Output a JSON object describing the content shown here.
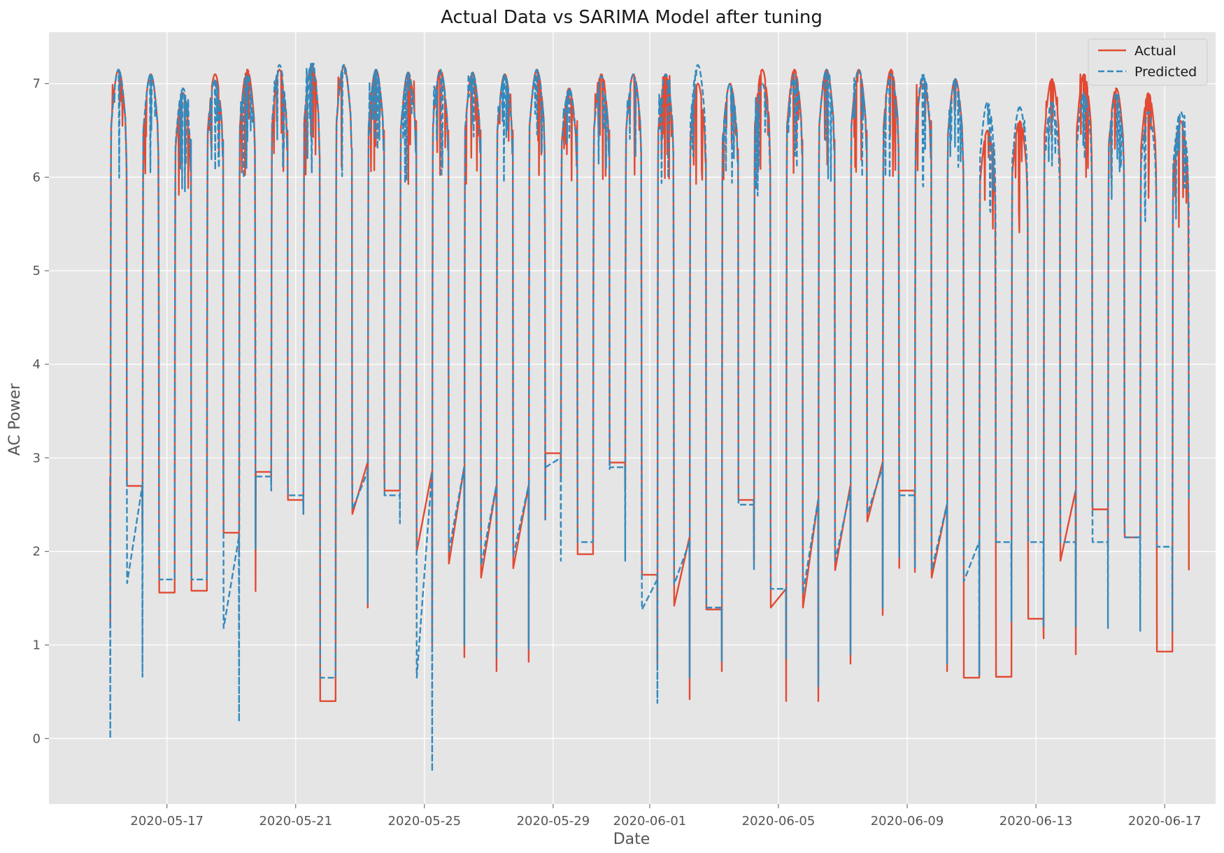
{
  "chart_data": {
    "type": "line",
    "title": "Actual Data vs SARIMA Model after tuning",
    "xlabel": "Date",
    "ylabel": "AC Power",
    "x_range": [
      "2020-05-13T08:00",
      "2020-06-18T14:00"
    ],
    "ylim": [
      -0.7,
      7.55
    ],
    "x_ticks": [
      "2020-05-17",
      "2020-05-21",
      "2020-05-25",
      "2020-05-29",
      "2020-06-01",
      "2020-06-05",
      "2020-06-09",
      "2020-06-13",
      "2020-06-17"
    ],
    "y_ticks": [
      0,
      1,
      2,
      3,
      4,
      5,
      6,
      7
    ],
    "grid": true,
    "style": "ggplot",
    "legend_position": "top-right",
    "series_names": [
      "Actual",
      "Predicted"
    ],
    "series_colors": [
      "#E24A33",
      "#348ABD"
    ],
    "series_styles": [
      "solid",
      "dashed"
    ],
    "days": [
      {
        "date": "2020-05-15",
        "actual_peak": 7.15,
        "pred_peak": 7.15,
        "actual_night_start": 2.8,
        "actual_night_end": 6.1,
        "pred_night_start": 2.7,
        "pred_night_end": 6.0,
        "actual_min": 1.22,
        "pred_min": 0.0
      },
      {
        "date": "2020-05-16",
        "actual_peak": 7.1,
        "pred_peak": 7.1,
        "actual_night_start": 2.7,
        "actual_night_end": 4.7,
        "pred_night_start": 2.7,
        "pred_night_end": 4.7,
        "actual_min": 2.15,
        "pred_min": 0.66
      },
      {
        "date": "2020-05-17",
        "actual_peak": 6.9,
        "pred_peak": 6.95,
        "actual_night_start": 1.56,
        "actual_night_end": 6.4,
        "pred_night_start": 1.7,
        "pred_night_end": 6.4,
        "actual_min": 1.56,
        "pred_min": 1.7
      },
      {
        "date": "2020-05-18",
        "actual_peak": 7.1,
        "pred_peak": 7.05,
        "actual_night_start": 1.58,
        "actual_night_end": 6.4,
        "pred_night_start": 1.7,
        "pred_night_end": 6.4,
        "actual_min": 1.58,
        "pred_min": 1.7
      },
      {
        "date": "2020-05-19",
        "actual_peak": 7.15,
        "pred_peak": 7.1,
        "actual_night_start": 2.2,
        "actual_night_end": 3.5,
        "pred_night_start": 2.15,
        "pred_night_end": 4.5,
        "actual_min": 1.95,
        "pred_min": 0.18
      },
      {
        "date": "2020-05-20",
        "actual_peak": 7.15,
        "pred_peak": 7.2,
        "actual_night_start": 2.85,
        "actual_night_end": 6.5,
        "pred_night_start": 2.8,
        "pred_night_end": 6.4,
        "actual_min": 2.75,
        "pred_min": 2.65
      },
      {
        "date": "2020-05-21",
        "actual_peak": 7.2,
        "pred_peak": 7.22,
        "actual_night_start": 2.55,
        "actual_night_end": 6.2,
        "pred_night_start": 2.6,
        "pred_night_end": 6.2,
        "actual_min": 2.4,
        "pred_min": 2.4
      },
      {
        "date": "2020-05-22",
        "actual_peak": 7.18,
        "pred_peak": 7.2,
        "actual_night_start": 0.4,
        "actual_night_end": 6.3,
        "pred_night_start": 0.65,
        "pred_night_end": 6.3,
        "actual_min": 0.4,
        "pred_min": 0.65
      },
      {
        "date": "2020-05-23",
        "actual_peak": 7.15,
        "pred_peak": 7.15,
        "actual_night_start": 2.95,
        "actual_night_end": 6.5,
        "pred_night_start": 2.85,
        "pred_night_end": 6.4,
        "actual_min": 1.4,
        "pred_min": 1.45
      },
      {
        "date": "2020-05-24",
        "actual_peak": 7.12,
        "pred_peak": 7.12,
        "actual_night_start": 2.65,
        "actual_night_end": 6.6,
        "pred_night_start": 2.6,
        "pred_night_end": 6.5,
        "actual_min": 2.65,
        "pred_min": 2.3
      },
      {
        "date": "2020-05-25",
        "actual_peak": 7.15,
        "pred_peak": 7.15,
        "actual_night_start": 2.85,
        "actual_night_end": 6.5,
        "pred_night_start": 2.85,
        "pred_night_end": 6.4,
        "actual_min": 1.0,
        "pred_min": -0.35
      },
      {
        "date": "2020-05-26",
        "actual_peak": 7.12,
        "pred_peak": 7.12,
        "actual_night_start": 2.9,
        "actual_night_end": 6.5,
        "pred_night_start": 2.9,
        "pred_night_end": 6.4,
        "actual_min": 0.87,
        "pred_min": 1.0
      },
      {
        "date": "2020-05-27",
        "actual_peak": 7.1,
        "pred_peak": 7.1,
        "actual_night_start": 2.7,
        "actual_night_end": 6.5,
        "pred_night_start": 2.7,
        "pred_night_end": 6.4,
        "actual_min": 0.72,
        "pred_min": 0.85
      },
      {
        "date": "2020-05-28",
        "actual_peak": 7.15,
        "pred_peak": 7.15,
        "actual_night_start": 2.7,
        "actual_night_end": 5.2,
        "pred_night_start": 2.7,
        "pred_night_end": 5.2,
        "actual_min": 0.82,
        "pred_min": 0.95
      },
      {
        "date": "2020-05-29",
        "actual_peak": 6.95,
        "pred_peak": 6.95,
        "actual_night_start": 3.05,
        "actual_night_end": 6.6,
        "pred_night_start": 3.0,
        "pred_night_end": 6.5,
        "actual_min": 2.75,
        "pred_min": 1.9
      },
      {
        "date": "2020-05-30",
        "actual_peak": 7.1,
        "pred_peak": 7.08,
        "actual_night_start": 1.97,
        "actual_night_end": 6.5,
        "pred_night_start": 2.1,
        "pred_night_end": 6.4,
        "actual_min": 1.97,
        "pred_min": 2.1
      },
      {
        "date": "2020-05-31",
        "actual_peak": 7.1,
        "pred_peak": 7.1,
        "actual_night_start": 2.95,
        "actual_night_end": 4.4,
        "pred_night_start": 2.9,
        "pred_night_end": 3.9,
        "actual_min": 2.65,
        "pred_min": 1.9
      },
      {
        "date": "2020-06-01",
        "actual_peak": 7.1,
        "pred_peak": 7.1,
        "actual_night_start": 1.75,
        "actual_night_end": 4.95,
        "pred_night_start": 1.7,
        "pred_night_end": 4.7,
        "actual_min": 0.8,
        "pred_min": 0.38
      },
      {
        "date": "2020-06-02",
        "actual_peak": 7.0,
        "pred_peak": 7.2,
        "actual_night_start": 2.15,
        "actual_night_end": 6.2,
        "pred_night_start": 2.1,
        "pred_night_end": 6.0,
        "actual_min": 0.42,
        "pred_min": 0.65
      },
      {
        "date": "2020-06-03",
        "actual_peak": 7.0,
        "pred_peak": 7.0,
        "actual_night_start": 1.38,
        "actual_night_end": 6.3,
        "pred_night_start": 1.4,
        "pred_night_end": 6.2,
        "actual_min": 0.72,
        "pred_min": 0.82
      },
      {
        "date": "2020-06-04",
        "actual_peak": 7.15,
        "pred_peak": 7.0,
        "actual_night_start": 2.55,
        "actual_night_end": 6.1,
        "pred_night_start": 2.5,
        "pred_night_end": 6.0,
        "actual_min": 1.9,
        "pred_min": 1.8
      },
      {
        "date": "2020-06-05",
        "actual_peak": 7.15,
        "pred_peak": 7.1,
        "actual_night_start": 1.6,
        "actual_night_end": 6.4,
        "pred_night_start": 1.6,
        "pred_night_end": 6.2,
        "actual_min": 0.4,
        "pred_min": 0.85
      },
      {
        "date": "2020-06-06",
        "actual_peak": 7.15,
        "pred_peak": 7.15,
        "actual_night_start": 2.55,
        "actual_night_end": 6.4,
        "pred_night_start": 2.55,
        "pred_night_end": 6.3,
        "actual_min": 0.4,
        "pred_min": 0.55
      },
      {
        "date": "2020-06-07",
        "actual_peak": 7.15,
        "pred_peak": 7.15,
        "actual_night_start": 2.7,
        "actual_night_end": 6.5,
        "pred_night_start": 2.65,
        "pred_night_end": 6.4,
        "actual_min": 0.8,
        "pred_min": 0.9
      },
      {
        "date": "2020-06-08",
        "actual_peak": 7.15,
        "pred_peak": 7.1,
        "actual_night_start": 2.95,
        "actual_night_end": 4.05,
        "pred_night_start": 2.9,
        "pred_night_end": 4.3,
        "actual_min": 1.32,
        "pred_min": 1.4
      },
      {
        "date": "2020-06-09",
        "actual_peak": 7.05,
        "pred_peak": 7.1,
        "actual_night_start": 2.65,
        "actual_night_end": 6.6,
        "pred_night_start": 2.6,
        "pred_night_end": 6.5,
        "actual_min": 1.78,
        "pred_min": 1.82
      },
      {
        "date": "2020-06-10",
        "actual_peak": 7.05,
        "pred_peak": 7.05,
        "actual_night_start": 2.5,
        "actual_night_end": 6.0,
        "pred_night_start": 2.5,
        "pred_night_end": 6.1,
        "actual_min": 0.72,
        "pred_min": 0.8
      },
      {
        "date": "2020-06-11",
        "actual_peak": 6.5,
        "pred_peak": 6.8,
        "actual_night_start": 0.65,
        "actual_night_end": 4.1,
        "pred_night_start": 2.1,
        "pred_night_end": 5.5,
        "actual_min": 0.65,
        "pred_min": 0.68
      },
      {
        "date": "2020-06-12",
        "actual_peak": 6.6,
        "pred_peak": 6.75,
        "actual_night_start": 0.66,
        "actual_night_end": 5.5,
        "pred_night_start": 2.1,
        "pred_night_end": 5.5,
        "actual_min": 0.66,
        "pred_min": 1.25
      },
      {
        "date": "2020-06-13",
        "actual_peak": 7.05,
        "pred_peak": 6.8,
        "actual_night_start": 1.28,
        "actual_night_end": 6.2,
        "pred_night_start": 2.1,
        "pred_night_end": 6.0,
        "actual_min": 1.07,
        "pred_min": 1.2
      },
      {
        "date": "2020-06-14",
        "actual_peak": 7.1,
        "pred_peak": 6.9,
        "actual_night_start": 2.65,
        "actual_night_end": 5.7,
        "pred_night_start": 2.1,
        "pred_night_end": 5.8,
        "actual_min": 0.9,
        "pred_min": 1.2
      },
      {
        "date": "2020-06-15",
        "actual_peak": 6.95,
        "pred_peak": 6.9,
        "actual_night_start": 2.45,
        "actual_night_end": 5.2,
        "pred_night_start": 2.1,
        "pred_night_end": 5.0,
        "actual_min": 2.03,
        "pred_min": 1.18
      },
      {
        "date": "2020-06-16",
        "actual_peak": 6.9,
        "pred_peak": 6.7,
        "actual_night_start": 2.15,
        "actual_night_end": 5.5,
        "pred_night_start": 2.15,
        "pred_night_end": 5.6,
        "actual_min": 2.15,
        "pred_min": 1.15
      },
      {
        "date": "2020-06-17",
        "actual_peak": 6.6,
        "pred_peak": 6.7,
        "actual_night_start": 0.93,
        "actual_night_end": 4.0,
        "pred_night_start": 2.05,
        "pred_night_end": 5.7,
        "actual_min": 0.93,
        "pred_min": 1.15
      }
    ]
  }
}
